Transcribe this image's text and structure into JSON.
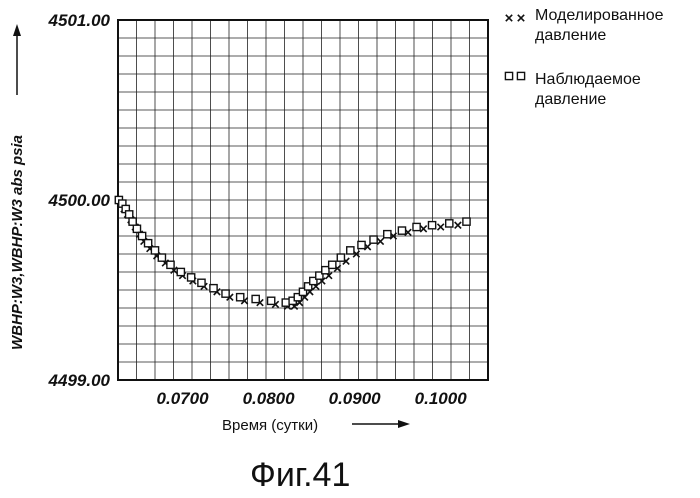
{
  "chart_data": {
    "type": "scatter",
    "title": "",
    "xlabel": "Время (сутки)",
    "ylabel": "WBHP:W3,WBHP:W3  abs  psia",
    "xlim": [
      0.0625,
      0.1055
    ],
    "ylim": [
      4499.0,
      4501.0
    ],
    "x_ticks": [
      {
        "value": 0.07,
        "label": "0.0700"
      },
      {
        "value": 0.08,
        "label": "0.0800"
      },
      {
        "value": 0.09,
        "label": "0.0900"
      },
      {
        "value": 0.1,
        "label": "0.1000"
      }
    ],
    "y_ticks": [
      {
        "value": 4499.0,
        "label": "4499.00"
      },
      {
        "value": 4500.0,
        "label": "4500.00"
      },
      {
        "value": 4501.0,
        "label": "4501.00"
      }
    ],
    "grid": true,
    "legend_position": "top-right",
    "series": [
      {
        "name": "Моделированное давление",
        "marker": "x",
        "x": [
          0.0628,
          0.0632,
          0.0636,
          0.064,
          0.0645,
          0.065,
          0.0655,
          0.0662,
          0.067,
          0.068,
          0.069,
          0.07,
          0.0712,
          0.0725,
          0.074,
          0.0755,
          0.0772,
          0.079,
          0.0808,
          0.0822,
          0.083,
          0.0836,
          0.0842,
          0.0848,
          0.0855,
          0.0862,
          0.087,
          0.088,
          0.089,
          0.0902,
          0.0915,
          0.093,
          0.0945,
          0.0962,
          0.098,
          0.1,
          0.102
        ],
        "y": [
          4499.98,
          4499.95,
          4499.92,
          4499.89,
          4499.85,
          4499.81,
          4499.77,
          4499.73,
          4499.69,
          4499.65,
          4499.61,
          4499.58,
          4499.55,
          4499.52,
          4499.49,
          4499.46,
          4499.44,
          4499.43,
          4499.42,
          4499.41,
          4499.41,
          4499.43,
          4499.46,
          4499.49,
          4499.52,
          4499.55,
          4499.58,
          4499.62,
          4499.66,
          4499.7,
          4499.74,
          4499.77,
          4499.8,
          4499.82,
          4499.84,
          4499.85,
          4499.86
        ]
      },
      {
        "name": "Наблюдаемое давление",
        "marker": "square",
        "x": [
          0.0626,
          0.063,
          0.0634,
          0.0638,
          0.0642,
          0.0647,
          0.0653,
          0.066,
          0.0668,
          0.0676,
          0.0686,
          0.0698,
          0.071,
          0.0722,
          0.0736,
          0.075,
          0.0767,
          0.0785,
          0.0803,
          0.082,
          0.0828,
          0.0834,
          0.084,
          0.0846,
          0.0852,
          0.0859,
          0.0866,
          0.0874,
          0.0884,
          0.0895,
          0.0908,
          0.0922,
          0.0938,
          0.0955,
          0.0972,
          0.099,
          0.101,
          0.103
        ],
        "y": [
          4500.0,
          4499.98,
          4499.95,
          4499.92,
          4499.88,
          4499.84,
          4499.8,
          4499.76,
          4499.72,
          4499.68,
          4499.64,
          4499.6,
          4499.57,
          4499.54,
          4499.51,
          4499.48,
          4499.46,
          4499.45,
          4499.44,
          4499.43,
          4499.44,
          4499.46,
          4499.49,
          4499.52,
          4499.55,
          4499.58,
          4499.61,
          4499.64,
          4499.68,
          4499.72,
          4499.75,
          4499.78,
          4499.81,
          4499.83,
          4499.85,
          4499.86,
          4499.87,
          4499.88
        ]
      }
    ],
    "caption": "Фиг.41"
  },
  "legend": {
    "simulated": [
      "Моделированное",
      "давление"
    ],
    "observed": [
      "Наблюдаемое",
      "давление"
    ]
  },
  "colors": {
    "ink": "#111111",
    "grid": "#222222",
    "background": "#ffffff"
  }
}
